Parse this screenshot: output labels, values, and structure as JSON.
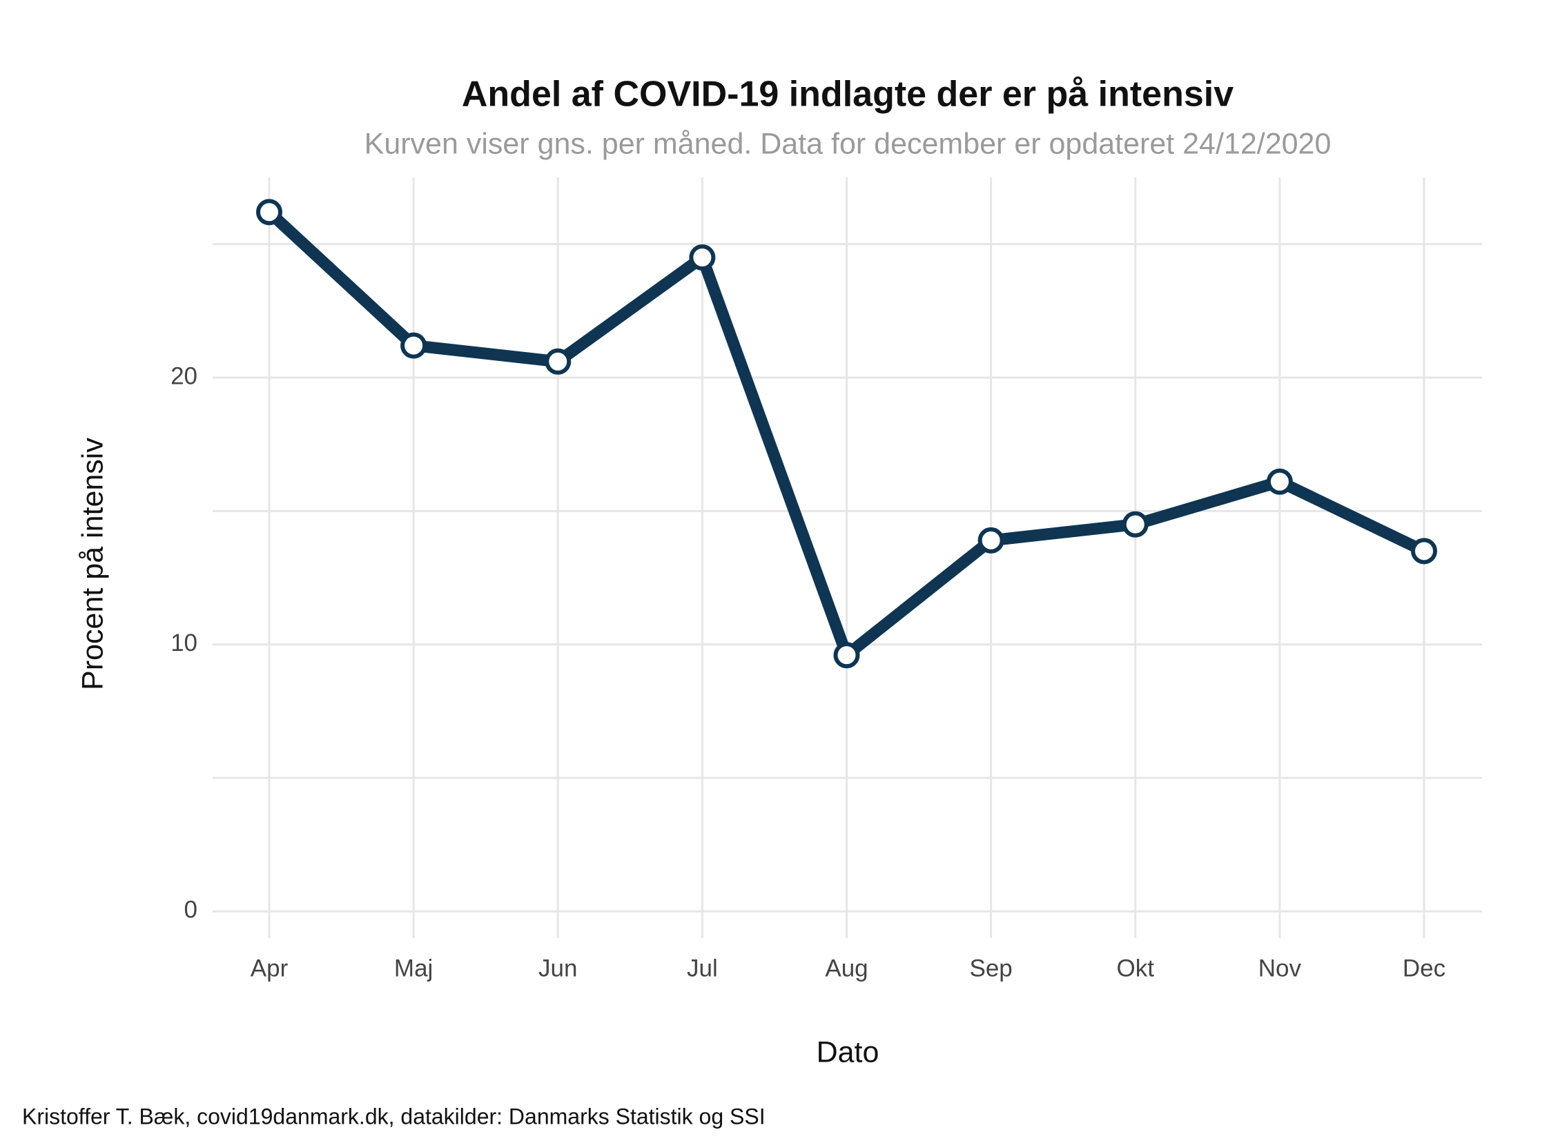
{
  "chart_data": {
    "type": "line",
    "title": "Andel af COVID-19 indlagte der er på intensiv",
    "subtitle": "Kurven viser gns. per måned. Data for december er opdateret 24/12/2020",
    "x_label": "Dato",
    "y_label": "Procent på intensiv",
    "caption": "Kristoffer T. Bæk, covid19danmark.dk, datakilder: Danmarks Statistik og SSI",
    "categories": [
      "Apr",
      "Maj",
      "Jun",
      "Jul",
      "Aug",
      "Sep",
      "Okt",
      "Nov",
      "Dec"
    ],
    "values": [
      26.2,
      21.2,
      20.6,
      24.5,
      9.6,
      13.9,
      14.5,
      16.1,
      13.5
    ],
    "color": "#0f3552",
    "ylim": [
      -1.0,
      27.5
    ],
    "yticks": [
      0,
      10,
      20
    ],
    "minor_yticks": [
      5,
      15,
      25
    ],
    "grid": true
  }
}
